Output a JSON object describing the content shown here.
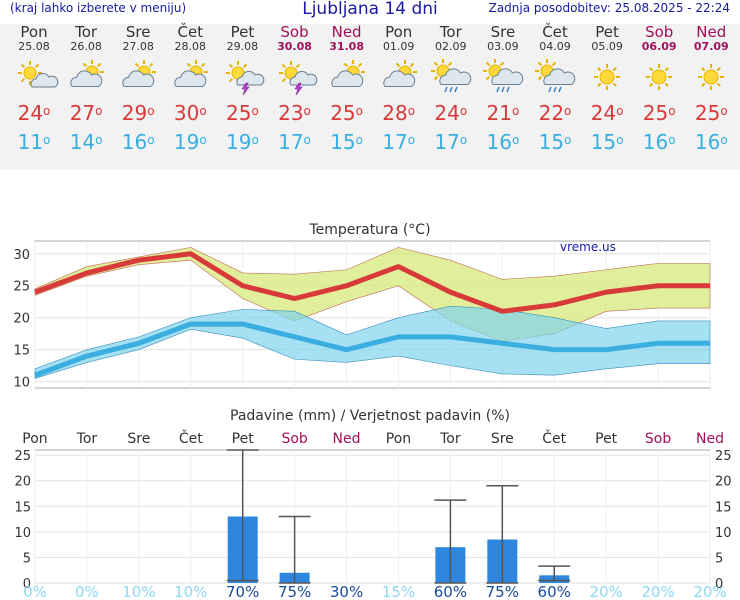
{
  "header": {
    "hint": "(kraj lahko izberete v meniju)",
    "title": "Ljubljana 14 dni",
    "updated": "Zadnja posodobitev: 25.08.2025 - 22:24"
  },
  "days": [
    {
      "name": "Pon",
      "date": "25.08",
      "icon": "sun-cloud-icon",
      "max": "24",
      "min": "11",
      "weekend": false
    },
    {
      "name": "Tor",
      "date": "26.08",
      "icon": "cloud-sun-icon",
      "max": "27",
      "min": "14",
      "weekend": false
    },
    {
      "name": "Sre",
      "date": "27.08",
      "icon": "cloud-sun-icon",
      "max": "29",
      "min": "16",
      "weekend": false
    },
    {
      "name": "Čet",
      "date": "28.08",
      "icon": "cloud-sun-icon",
      "max": "30",
      "min": "19",
      "weekend": false
    },
    {
      "name": "Pet",
      "date": "29.08",
      "icon": "thunder-sun-icon",
      "max": "25",
      "min": "19",
      "weekend": false
    },
    {
      "name": "Sob",
      "date": "30.08",
      "icon": "thunder-sun-icon",
      "max": "23",
      "min": "17",
      "weekend": true
    },
    {
      "name": "Ned",
      "date": "31.08",
      "icon": "cloud-sun-icon",
      "max": "25",
      "min": "15",
      "weekend": true
    },
    {
      "name": "Pon",
      "date": "01.09",
      "icon": "cloud-sun-icon",
      "max": "28",
      "min": "17",
      "weekend": false
    },
    {
      "name": "Tor",
      "date": "02.09",
      "icon": "rain-sun-icon",
      "max": "24",
      "min": "17",
      "weekend": false
    },
    {
      "name": "Sre",
      "date": "03.09",
      "icon": "rain-sun-icon",
      "max": "21",
      "min": "16",
      "weekend": false
    },
    {
      "name": "Čet",
      "date": "04.09",
      "icon": "rain-sun-icon",
      "max": "22",
      "min": "15",
      "weekend": false
    },
    {
      "name": "Pet",
      "date": "05.09",
      "icon": "sun-icon",
      "max": "24",
      "min": "15",
      "weekend": false
    },
    {
      "name": "Sob",
      "date": "06.09",
      "icon": "sun-icon",
      "max": "25",
      "min": "16",
      "weekend": true
    },
    {
      "name": "Ned",
      "date": "07.09",
      "icon": "sun-icon",
      "max": "25",
      "min": "16",
      "weekend": true
    }
  ],
  "colors": {
    "max": "#d83a3a",
    "min": "#3aaee0",
    "bar": "#2e86de",
    "weekend": "#a0105a"
  },
  "chart_data": [
    {
      "type": "line",
      "title": "Temperatura (°C)",
      "watermark": "vreme.us",
      "ylim": [
        9,
        32
      ],
      "yticks": [
        10,
        15,
        20,
        25,
        30
      ],
      "series": [
        {
          "name": "max",
          "values": [
            24,
            27,
            29,
            30,
            25,
            23,
            25,
            28,
            24,
            21,
            22,
            24,
            25,
            25
          ]
        },
        {
          "name": "min",
          "values": [
            11,
            14,
            16,
            19,
            19,
            17,
            15,
            17,
            17,
            16,
            15,
            15,
            16,
            16
          ]
        }
      ],
      "max_range": {
        "high": [
          24.5,
          28,
          29.5,
          31,
          27,
          26.8,
          27.5,
          31,
          29,
          26,
          26.5,
          27.5,
          28.5,
          28.5
        ],
        "low": [
          23.5,
          26.5,
          28.3,
          29,
          23,
          19.5,
          22.5,
          25,
          19.5,
          16.3,
          17.5,
          21,
          21.5,
          21.5
        ]
      },
      "min_range": {
        "high": [
          12,
          15,
          17,
          20,
          21.3,
          21,
          17.3,
          20,
          21.8,
          21.3,
          20,
          18.3,
          19.5,
          19.5
        ],
        "low": [
          10.5,
          13,
          15,
          18.2,
          16.8,
          13.5,
          13,
          14,
          12.5,
          11.2,
          11,
          12,
          12.8,
          12.8
        ]
      }
    },
    {
      "type": "bar",
      "title": "Padavine (mm) / Verjetnost padavin (%)",
      "categories": [
        "Pon",
        "Tor",
        "Sre",
        "Čet",
        "Pet",
        "Sob",
        "Ned",
        "Pon",
        "Tor",
        "Sre",
        "Čet",
        "Pet",
        "Sob",
        "Ned"
      ],
      "values": [
        0,
        0,
        0,
        0,
        13,
        2,
        0,
        0,
        7,
        8.5,
        1.5,
        0,
        0,
        0
      ],
      "error_high": [
        0,
        0,
        0,
        0,
        26,
        13,
        0,
        0,
        16.2,
        19,
        3.3,
        0,
        0,
        0
      ],
      "error_low": [
        0,
        0,
        0,
        0,
        0.5,
        0,
        0,
        0,
        0,
        0,
        0.5,
        0,
        0,
        0
      ],
      "probability": [
        "0%",
        "0%",
        "10%",
        "10%",
        "70%",
        "75%",
        "30%",
        "15%",
        "60%",
        "75%",
        "60%",
        "20%",
        "20%",
        "20%"
      ],
      "ylim": [
        0,
        26
      ],
      "yticks": [
        0,
        5,
        10,
        15,
        20,
        25
      ]
    }
  ]
}
